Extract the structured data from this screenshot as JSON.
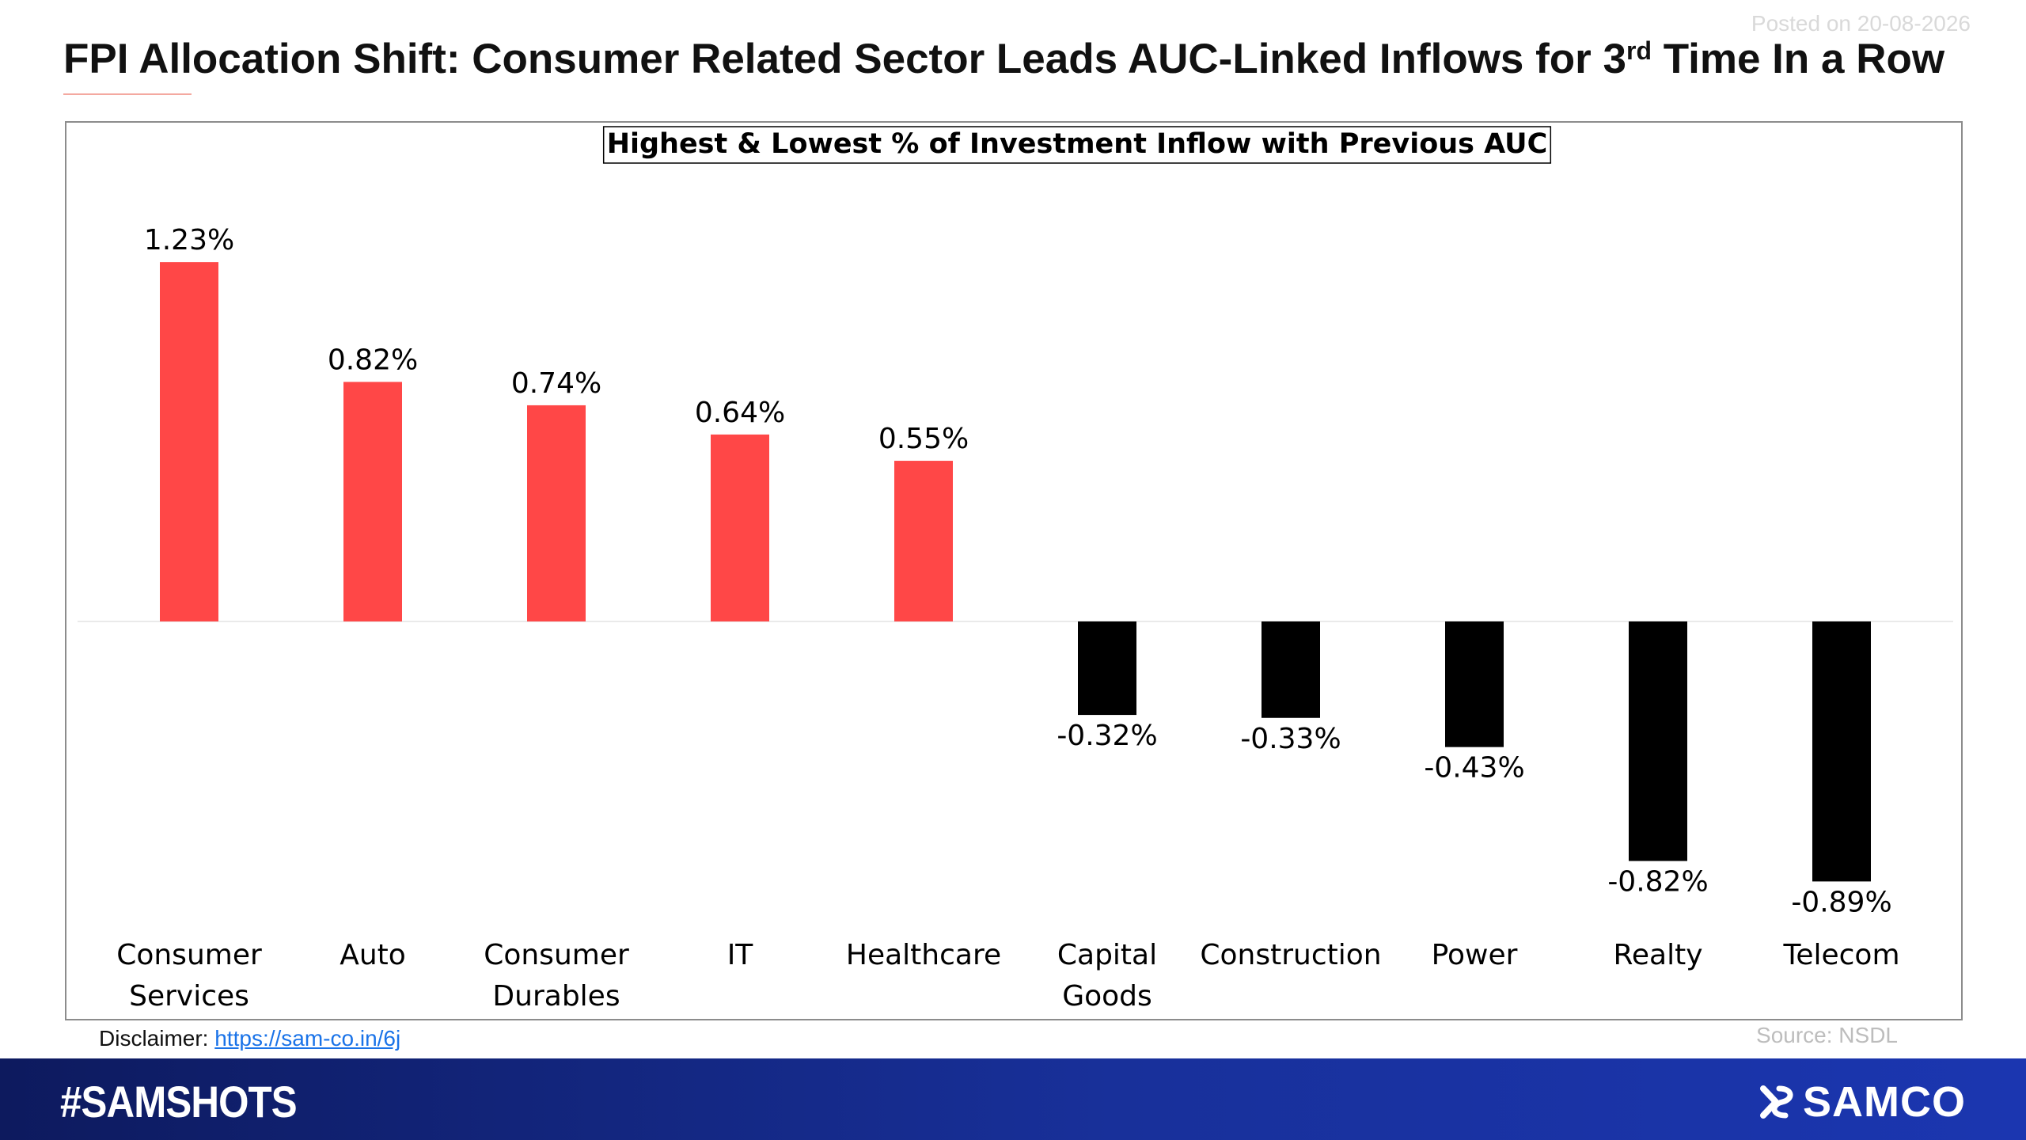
{
  "header": {
    "posted": "Posted on 20-08-2026",
    "title_main": "FPI Allocation Shift: Consumer Related Sector Leads AUC-Linked Inflows for 3",
    "title_sup": "rd",
    "title_end": " Time In a Row"
  },
  "chart_data": {
    "type": "bar",
    "title": "Highest & Lowest % of Investment Inflow with Previous AUC",
    "categories": [
      [
        "Consumer",
        "Services"
      ],
      [
        "Auto"
      ],
      [
        "Consumer",
        "Durables"
      ],
      [
        "IT"
      ],
      [
        "Healthcare"
      ],
      [
        "Capital",
        "Goods"
      ],
      [
        "Construction"
      ],
      [
        "Power"
      ],
      [
        "Realty"
      ],
      [
        "Telecom"
      ]
    ],
    "values": [
      1.23,
      0.82,
      0.74,
      0.64,
      0.55,
      -0.32,
      -0.33,
      -0.43,
      -0.82,
      -0.89
    ],
    "data_labels": [
      "1.23%",
      "0.82%",
      "0.74%",
      "0.64%",
      "0.55%",
      "-0.32%",
      "-0.33%",
      "-0.43%",
      "-0.82%",
      "-0.89%"
    ],
    "colors": {
      "positive": "#ff4747",
      "negative": "#000000"
    },
    "grid": false,
    "legend": "none"
  },
  "footer": {
    "disclaimer_label": "Disclaimer: ",
    "disclaimer_link": "https://sam-co.in/6j",
    "source": "Source: NSDL",
    "hashtag": "#SAMSHOTS",
    "brand": "SAMCO"
  }
}
